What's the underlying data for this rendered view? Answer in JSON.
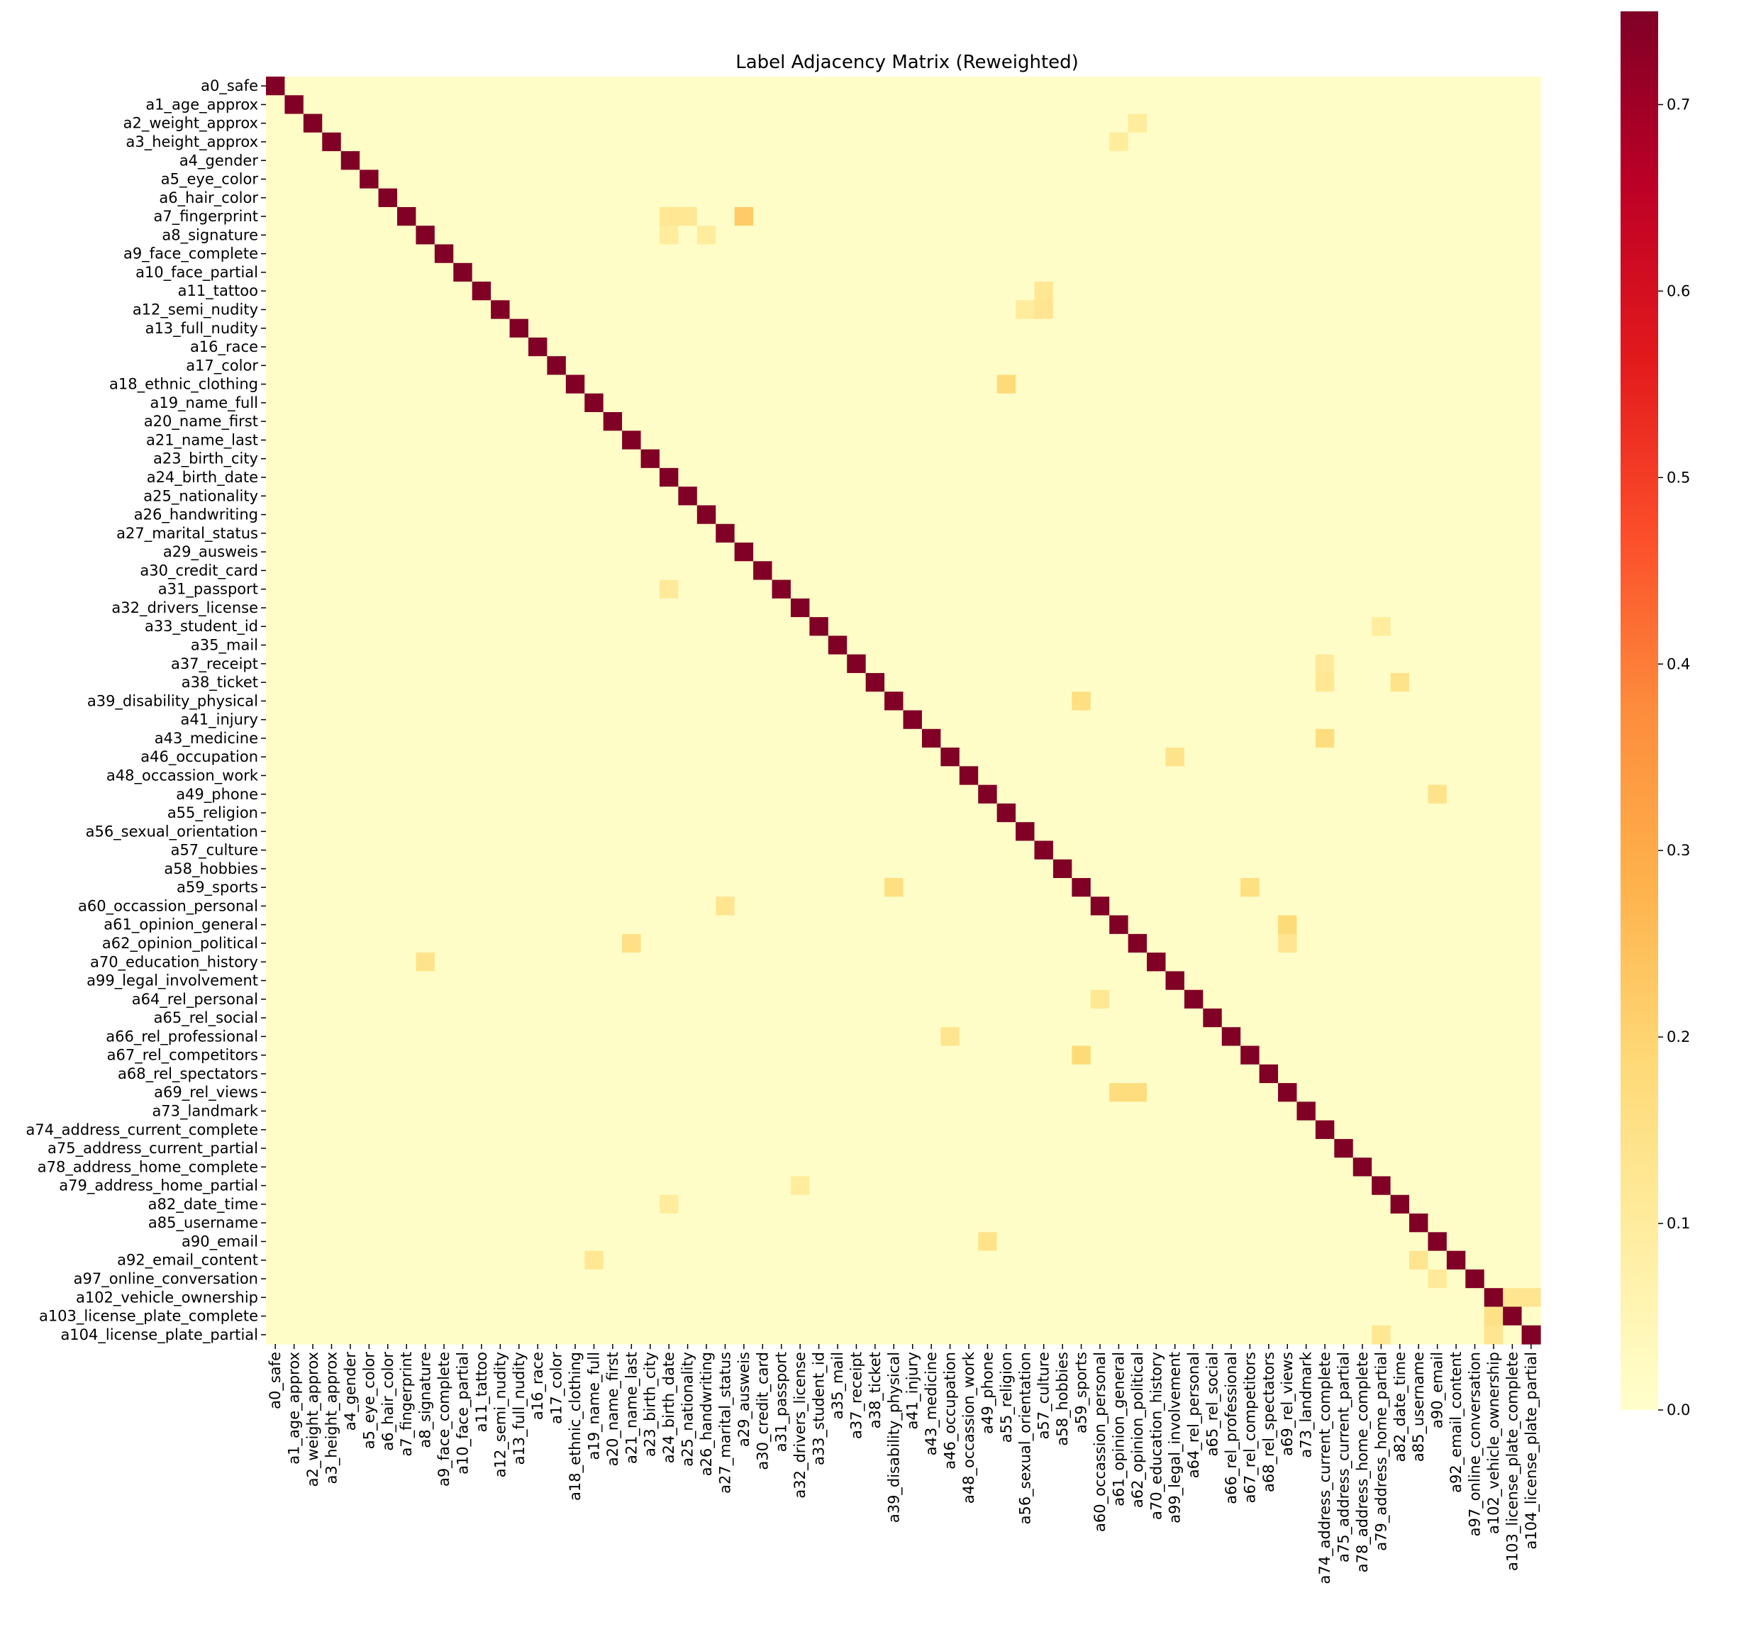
{
  "chart_data": {
    "type": "heatmap",
    "title": "Label Adjacency Matrix (Reweighted)",
    "colormap": "YlOrRd",
    "colorbar_range": [
      0.0,
      0.75
    ],
    "colorbar_ticks": [
      "0.0",
      "0.1",
      "0.2",
      "0.3",
      "0.4",
      "0.5",
      "0.6",
      "0.7"
    ],
    "labels": [
      "a0_safe",
      "a1_age_approx",
      "a2_weight_approx",
      "a3_height_approx",
      "a4_gender",
      "a5_eye_color",
      "a6_hair_color",
      "a7_fingerprint",
      "a8_signature",
      "a9_face_complete",
      "a10_face_partial",
      "a11_tattoo",
      "a12_semi_nudity",
      "a13_full_nudity",
      "a16_race",
      "a17_color",
      "a18_ethnic_clothing",
      "a19_name_full",
      "a20_name_first",
      "a21_name_last",
      "a23_birth_city",
      "a24_birth_date",
      "a25_nationality",
      "a26_handwriting",
      "a27_marital_status",
      "a29_ausweis",
      "a30_credit_card",
      "a31_passport",
      "a32_drivers_license",
      "a33_student_id",
      "a35_mail",
      "a37_receipt",
      "a38_ticket",
      "a39_disability_physical",
      "a41_injury",
      "a43_medicine",
      "a46_occupation",
      "a48_occassion_work",
      "a49_phone",
      "a55_religion",
      "a56_sexual_orientation",
      "a57_culture",
      "a58_hobbies",
      "a59_sports",
      "a60_occassion_personal",
      "a61_opinion_general",
      "a62_opinion_political",
      "a70_education_history",
      "a99_legal_involvement",
      "a64_rel_personal",
      "a65_rel_social",
      "a66_rel_professional",
      "a67_rel_competitors",
      "a68_rel_spectators",
      "a69_rel_views",
      "a73_landmark",
      "a74_address_current_complete",
      "a75_address_current_partial",
      "a78_address_home_complete",
      "a79_address_home_partial",
      "a82_date_time",
      "a85_username",
      "a90_email",
      "a92_email_content",
      "a97_online_conversation",
      "a102_vehicle_ownership",
      "a103_license_plate_complete",
      "a104_license_plate_partial"
    ],
    "diagonal_value": 0.75,
    "off_diagonal_default": 0.01,
    "notable_cells": [
      {
        "row": "a7_fingerprint",
        "col": "a29_ausweis",
        "value": 0.22
      },
      {
        "row": "a7_fingerprint",
        "col": "a24_birth_date",
        "value": 0.12
      },
      {
        "row": "a7_fingerprint",
        "col": "a25_nationality",
        "value": 0.12
      },
      {
        "row": "a8_signature",
        "col": "a24_birth_date",
        "value": 0.1
      },
      {
        "row": "a8_signature",
        "col": "a26_handwriting",
        "value": 0.1
      },
      {
        "row": "a11_tattoo",
        "col": "a57_culture",
        "value": 0.12
      },
      {
        "row": "a12_semi_nudity",
        "col": "a57_culture",
        "value": 0.13
      },
      {
        "row": "a12_semi_nudity",
        "col": "a56_sexual_orientation",
        "value": 0.1
      },
      {
        "row": "a18_ethnic_clothing",
        "col": "a55_religion",
        "value": 0.18
      },
      {
        "row": "a38_ticket",
        "col": "a82_date_time",
        "value": 0.14
      },
      {
        "row": "a38_ticket",
        "col": "a74_address_current_complete",
        "value": 0.12
      },
      {
        "row": "a39_disability_physical",
        "col": "a59_sports",
        "value": 0.16
      },
      {
        "row": "a43_medicine",
        "col": "a74_address_current_complete",
        "value": 0.17
      },
      {
        "row": "a46_occupation",
        "col": "a99_legal_involvement",
        "value": 0.14
      },
      {
        "row": "a49_phone",
        "col": "a90_email",
        "value": 0.14
      },
      {
        "row": "a59_sports",
        "col": "a39_disability_physical",
        "value": 0.16
      },
      {
        "row": "a59_sports",
        "col": "a67_rel_competitors",
        "value": 0.16
      },
      {
        "row": "a60_occassion_personal",
        "col": "a27_marital_status",
        "value": 0.13
      },
      {
        "row": "a61_opinion_general",
        "col": "a69_rel_views",
        "value": 0.18
      },
      {
        "row": "a62_opinion_political",
        "col": "a21_name_last",
        "value": 0.15
      },
      {
        "row": "a62_opinion_political",
        "col": "a69_rel_views",
        "value": 0.13
      },
      {
        "row": "a70_education_history",
        "col": "a8_signature",
        "value": 0.14
      },
      {
        "row": "a64_rel_personal",
        "col": "a60_occassion_personal",
        "value": 0.12
      },
      {
        "row": "a66_rel_professional",
        "col": "a46_occupation",
        "value": 0.13
      },
      {
        "row": "a67_rel_competitors",
        "col": "a59_sports",
        "value": 0.18
      },
      {
        "row": "a69_rel_views",
        "col": "a61_opinion_general",
        "value": 0.17
      },
      {
        "row": "a69_rel_views",
        "col": "a62_opinion_political",
        "value": 0.17
      },
      {
        "row": "a79_address_home_partial",
        "col": "a32_drivers_license",
        "value": 0.1
      },
      {
        "row": "a90_email",
        "col": "a49_phone",
        "value": 0.14
      },
      {
        "row": "a92_email_content",
        "col": "a19_name_full",
        "value": 0.12
      },
      {
        "row": "a92_email_content",
        "col": "a85_username",
        "value": 0.13
      },
      {
        "row": "a97_online_conversation",
        "col": "a90_email",
        "value": 0.11
      },
      {
        "row": "a102_vehicle_ownership",
        "col": "a103_license_plate_complete",
        "value": 0.13
      },
      {
        "row": "a102_vehicle_ownership",
        "col": "a104_license_plate_partial",
        "value": 0.13
      },
      {
        "row": "a103_license_plate_complete",
        "col": "a102_vehicle_ownership",
        "value": 0.15
      },
      {
        "row": "a104_license_plate_partial",
        "col": "a102_vehicle_ownership",
        "value": 0.13
      },
      {
        "row": "a104_license_plate_partial",
        "col": "a79_address_home_partial",
        "value": 0.12
      },
      {
        "row": "a3_height_approx",
        "col": "a61_opinion_general",
        "value": 0.1
      },
      {
        "row": "a2_weight_approx",
        "col": "a62_opinion_political",
        "value": 0.1
      },
      {
        "row": "a31_passport",
        "col": "a24_birth_date",
        "value": 0.11
      },
      {
        "row": "a33_student_id",
        "col": "a79_address_home_partial",
        "value": 0.1
      },
      {
        "row": "a37_receipt",
        "col": "a74_address_current_complete",
        "value": 0.11
      },
      {
        "row": "a82_date_time",
        "col": "a24_birth_date",
        "value": 0.1
      }
    ]
  }
}
